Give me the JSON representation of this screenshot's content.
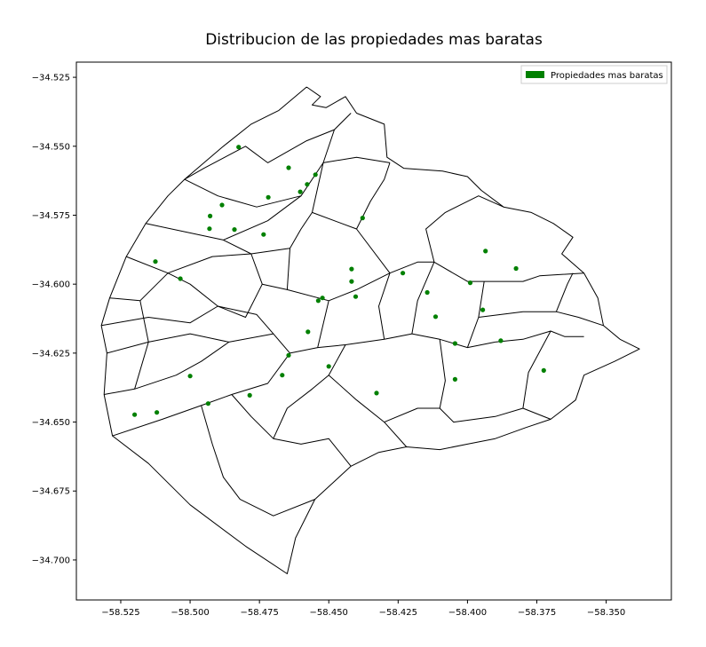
{
  "chart_data": {
    "type": "scatter",
    "title": "Distribucion de las propiedades mas baratas",
    "xlabel": "",
    "ylabel": "",
    "xlim": [
      -58.541,
      -58.3265
    ],
    "ylim": [
      -34.7145,
      -34.5195
    ],
    "x_ticks": [
      -58.525,
      -58.5,
      -58.475,
      -58.45,
      -58.425,
      -58.4,
      -58.375,
      -58.35
    ],
    "x_tick_labels": [
      "−58.525",
      "−58.500",
      "−58.475",
      "−58.450",
      "−58.425",
      "−58.400",
      "−58.375",
      "−58.350"
    ],
    "y_ticks": [
      -34.525,
      -34.55,
      -34.575,
      -34.6,
      -34.625,
      -34.65,
      -34.675,
      -34.7
    ],
    "y_tick_labels": [
      "−34.525",
      "−34.550",
      "−34.575",
      "−34.600",
      "−34.625",
      "−34.650",
      "−34.675",
      "−34.700"
    ],
    "grid": false,
    "legend_position": "top-right",
    "series": [
      {
        "name": "Propiedades mas baratas",
        "color": "#008000",
        "points": [
          {
            "x": -58.4825,
            "y": -34.5503
          },
          {
            "x": -58.4645,
            "y": -34.5578
          },
          {
            "x": -58.4548,
            "y": -34.5603
          },
          {
            "x": -58.4578,
            "y": -34.5638
          },
          {
            "x": -58.4603,
            "y": -34.5665
          },
          {
            "x": -58.4718,
            "y": -34.5685
          },
          {
            "x": -58.4885,
            "y": -34.5713
          },
          {
            "x": -58.4928,
            "y": -34.5753
          },
          {
            "x": -58.4378,
            "y": -34.576
          },
          {
            "x": -58.493,
            "y": -34.5799
          },
          {
            "x": -58.484,
            "y": -34.5802
          },
          {
            "x": -58.4735,
            "y": -34.582
          },
          {
            "x": -58.3935,
            "y": -34.588
          },
          {
            "x": -58.5125,
            "y": -34.5918
          },
          {
            "x": -58.3825,
            "y": -34.5943
          },
          {
            "x": -58.4418,
            "y": -34.5945
          },
          {
            "x": -58.4233,
            "y": -34.596
          },
          {
            "x": -58.5035,
            "y": -34.598
          },
          {
            "x": -58.4418,
            "y": -34.599
          },
          {
            "x": -58.399,
            "y": -34.5995
          },
          {
            "x": -58.4145,
            "y": -34.603
          },
          {
            "x": -58.4403,
            "y": -34.6045
          },
          {
            "x": -58.4523,
            "y": -34.605
          },
          {
            "x": -58.4538,
            "y": -34.606
          },
          {
            "x": -58.3945,
            "y": -34.6093
          },
          {
            "x": -58.4115,
            "y": -34.6118
          },
          {
            "x": -58.4575,
            "y": -34.6173
          },
          {
            "x": -58.388,
            "y": -34.6205
          },
          {
            "x": -58.4045,
            "y": -34.6215
          },
          {
            "x": -58.4645,
            "y": -34.6258
          },
          {
            "x": -58.45,
            "y": -34.6298
          },
          {
            "x": -58.3725,
            "y": -34.6313
          },
          {
            "x": -58.4668,
            "y": -34.633
          },
          {
            "x": -58.5,
            "y": -34.6333
          },
          {
            "x": -58.4045,
            "y": -34.6345
          },
          {
            "x": -58.4328,
            "y": -34.6395
          },
          {
            "x": -58.4785,
            "y": -34.6403
          },
          {
            "x": -58.4935,
            "y": -34.6433
          },
          {
            "x": -58.512,
            "y": -34.6465
          },
          {
            "x": -58.52,
            "y": -34.6473
          }
        ]
      }
    ],
    "boundaries": [
      [
        [
          -58.458,
          -34.5285
        ],
        [
          -58.453,
          -34.532
        ],
        [
          -58.456,
          -34.535
        ],
        [
          -58.451,
          -34.536
        ],
        [
          -58.444,
          -34.532
        ],
        [
          -58.44,
          -34.538
        ],
        [
          -58.43,
          -34.542
        ],
        [
          -58.429,
          -34.554
        ],
        [
          -58.423,
          -34.558
        ],
        [
          -58.409,
          -34.559
        ],
        [
          -58.4,
          -34.561
        ],
        [
          -58.395,
          -34.566
        ],
        [
          -58.387,
          -34.572
        ],
        [
          -58.377,
          -34.574
        ],
        [
          -58.369,
          -34.578
        ],
        [
          -58.362,
          -34.583
        ],
        [
          -58.366,
          -34.589
        ],
        [
          -58.358,
          -34.596
        ],
        [
          -58.353,
          -34.605
        ],
        [
          -58.351,
          -34.615
        ],
        [
          -58.345,
          -34.62
        ],
        [
          -58.338,
          -34.6235
        ],
        [
          -58.347,
          -34.628
        ],
        [
          -58.358,
          -34.633
        ],
        [
          -58.361,
          -34.642
        ],
        [
          -58.37,
          -34.649
        ],
        [
          -58.379,
          -34.652
        ],
        [
          -58.39,
          -34.656
        ],
        [
          -58.4,
          -34.658
        ],
        [
          -58.41,
          -34.66
        ],
        [
          -58.422,
          -34.659
        ],
        [
          -58.432,
          -34.661
        ],
        [
          -58.442,
          -34.666
        ],
        [
          -58.455,
          -34.678
        ],
        [
          -58.462,
          -34.692
        ],
        [
          -58.465,
          -34.705
        ],
        [
          -58.48,
          -34.695
        ],
        [
          -58.5,
          -34.68
        ],
        [
          -58.515,
          -34.665
        ],
        [
          -58.528,
          -34.655
        ],
        [
          -58.531,
          -34.64
        ],
        [
          -58.53,
          -34.625
        ],
        [
          -58.532,
          -34.615
        ],
        [
          -58.529,
          -34.605
        ],
        [
          -58.523,
          -34.59
        ],
        [
          -58.516,
          -34.578
        ],
        [
          -58.508,
          -34.568
        ],
        [
          -58.502,
          -34.562
        ],
        [
          -58.495,
          -34.556
        ],
        [
          -58.488,
          -34.55
        ],
        [
          -58.478,
          -34.542
        ],
        [
          -58.468,
          -34.537
        ],
        [
          -58.458,
          -34.5285
        ]
      ],
      [
        [
          -58.502,
          -34.562
        ],
        [
          -58.495,
          -34.558
        ],
        [
          -58.48,
          -34.55
        ],
        [
          -58.472,
          -34.556
        ],
        [
          -58.458,
          -34.548
        ],
        [
          -58.448,
          -34.544
        ],
        [
          -58.442,
          -34.538
        ]
      ],
      [
        [
          -58.448,
          -34.544
        ],
        [
          -58.452,
          -34.556
        ],
        [
          -58.46,
          -34.568
        ],
        [
          -58.476,
          -34.572
        ],
        [
          -58.49,
          -34.568
        ],
        [
          -58.502,
          -34.562
        ]
      ],
      [
        [
          -58.516,
          -34.578
        ],
        [
          -58.488,
          -34.584
        ],
        [
          -58.472,
          -34.577
        ],
        [
          -58.46,
          -34.568
        ]
      ],
      [
        [
          -58.488,
          -34.584
        ],
        [
          -58.478,
          -34.589
        ],
        [
          -58.464,
          -34.587
        ],
        [
          -58.46,
          -34.58
        ],
        [
          -58.456,
          -34.574
        ],
        [
          -58.452,
          -34.556
        ],
        [
          -58.44,
          -34.554
        ],
        [
          -58.428,
          -34.556
        ]
      ],
      [
        [
          -58.508,
          -34.596
        ],
        [
          -58.492,
          -34.59
        ],
        [
          -58.478,
          -34.589
        ],
        [
          -58.474,
          -34.6
        ],
        [
          -58.465,
          -34.602
        ],
        [
          -58.464,
          -34.587
        ]
      ],
      [
        [
          -58.523,
          -34.59
        ],
        [
          -58.508,
          -34.596
        ],
        [
          -58.5,
          -34.6
        ],
        [
          -58.49,
          -34.608
        ],
        [
          -58.48,
          -34.612
        ],
        [
          -58.474,
          -34.6
        ]
      ],
      [
        [
          -58.465,
          -34.602
        ],
        [
          -58.45,
          -34.606
        ],
        [
          -58.44,
          -34.602
        ],
        [
          -58.428,
          -34.596
        ],
        [
          -58.418,
          -34.592
        ],
        [
          -58.412,
          -34.592
        ],
        [
          -58.4,
          -34.599
        ],
        [
          -58.394,
          -34.599
        ],
        [
          -58.38,
          -34.599
        ],
        [
          -58.374,
          -34.597
        ],
        [
          -58.358,
          -34.596
        ]
      ],
      [
        [
          -58.456,
          -34.574
        ],
        [
          -58.44,
          -34.58
        ],
        [
          -58.428,
          -34.596
        ]
      ],
      [
        [
          -58.44,
          -34.58
        ],
        [
          -58.435,
          -34.57
        ],
        [
          -58.43,
          -34.562
        ],
        [
          -58.428,
          -34.556
        ]
      ],
      [
        [
          -58.412,
          -34.592
        ],
        [
          -58.415,
          -34.58
        ],
        [
          -58.408,
          -34.574
        ],
        [
          -58.396,
          -34.568
        ],
        [
          -58.387,
          -34.572
        ]
      ],
      [
        [
          -58.529,
          -34.605
        ],
        [
          -58.518,
          -34.606
        ],
        [
          -58.508,
          -34.596
        ]
      ],
      [
        [
          -58.49,
          -34.608
        ],
        [
          -58.476,
          -34.611
        ],
        [
          -58.47,
          -34.618
        ],
        [
          -58.464,
          -34.625
        ],
        [
          -58.454,
          -34.623
        ],
        [
          -58.45,
          -34.606
        ]
      ],
      [
        [
          -58.532,
          -34.615
        ],
        [
          -58.515,
          -34.612
        ],
        [
          -58.5,
          -34.614
        ],
        [
          -58.49,
          -34.608
        ]
      ],
      [
        [
          -58.53,
          -34.625
        ],
        [
          -58.515,
          -34.621
        ],
        [
          -58.5,
          -34.618
        ],
        [
          -58.486,
          -34.621
        ],
        [
          -58.47,
          -34.618
        ]
      ],
      [
        [
          -58.531,
          -34.64
        ],
        [
          -58.52,
          -34.638
        ],
        [
          -58.505,
          -34.633
        ],
        [
          -58.496,
          -34.628
        ],
        [
          -58.486,
          -34.621
        ]
      ],
      [
        [
          -58.528,
          -34.655
        ],
        [
          -58.51,
          -34.649
        ],
        [
          -58.496,
          -34.644
        ],
        [
          -58.485,
          -34.64
        ],
        [
          -58.472,
          -34.636
        ],
        [
          -58.464,
          -34.625
        ]
      ],
      [
        [
          -58.496,
          -34.644
        ],
        [
          -58.492,
          -34.658
        ],
        [
          -58.488,
          -34.67
        ],
        [
          -58.482,
          -34.678
        ],
        [
          -58.47,
          -34.684
        ],
        [
          -58.455,
          -34.678
        ]
      ],
      [
        [
          -58.485,
          -34.64
        ],
        [
          -58.478,
          -34.648
        ],
        [
          -58.47,
          -34.656
        ],
        [
          -58.46,
          -34.658
        ],
        [
          -58.45,
          -34.656
        ],
        [
          -58.442,
          -34.666
        ]
      ],
      [
        [
          -58.47,
          -34.656
        ],
        [
          -58.465,
          -34.645
        ],
        [
          -58.456,
          -34.638
        ],
        [
          -58.45,
          -34.633
        ],
        [
          -58.444,
          -34.622
        ],
        [
          -58.454,
          -34.623
        ]
      ],
      [
        [
          -58.45,
          -34.633
        ],
        [
          -58.44,
          -34.642
        ],
        [
          -58.43,
          -34.65
        ],
        [
          -58.422,
          -34.659
        ]
      ],
      [
        [
          -58.444,
          -34.622
        ],
        [
          -58.43,
          -34.62
        ],
        [
          -58.42,
          -34.618
        ],
        [
          -58.41,
          -34.62
        ],
        [
          -58.4,
          -34.623
        ],
        [
          -58.39,
          -34.621
        ]
      ],
      [
        [
          -58.43,
          -34.62
        ],
        [
          -58.432,
          -34.608
        ],
        [
          -58.428,
          -34.596
        ]
      ],
      [
        [
          -58.42,
          -34.618
        ],
        [
          -58.418,
          -34.606
        ],
        [
          -58.412,
          -34.592
        ]
      ],
      [
        [
          -58.43,
          -34.65
        ],
        [
          -58.418,
          -34.645
        ],
        [
          -58.41,
          -34.645
        ],
        [
          -58.408,
          -34.635
        ],
        [
          -58.41,
          -34.62
        ]
      ],
      [
        [
          -58.41,
          -34.645
        ],
        [
          -58.405,
          -34.65
        ],
        [
          -58.39,
          -34.648
        ],
        [
          -58.38,
          -34.645
        ],
        [
          -58.37,
          -34.649
        ]
      ],
      [
        [
          -58.4,
          -34.623
        ],
        [
          -58.396,
          -34.612
        ],
        [
          -58.394,
          -34.599
        ]
      ],
      [
        [
          -58.396,
          -34.612
        ],
        [
          -58.38,
          -34.61
        ],
        [
          -58.368,
          -34.61
        ],
        [
          -58.36,
          -34.612
        ],
        [
          -58.351,
          -34.615
        ]
      ],
      [
        [
          -58.39,
          -34.621
        ],
        [
          -58.38,
          -34.62
        ],
        [
          -58.37,
          -34.617
        ],
        [
          -58.365,
          -34.619
        ],
        [
          -58.358,
          -34.619
        ]
      ],
      [
        [
          -58.38,
          -34.645
        ],
        [
          -58.378,
          -34.632
        ],
        [
          -58.37,
          -34.617
        ]
      ],
      [
        [
          -58.368,
          -34.61
        ],
        [
          -58.364,
          -34.6
        ],
        [
          -58.362,
          -34.596
        ]
      ],
      [
        [
          -58.52,
          -34.638
        ],
        [
          -58.515,
          -34.621
        ],
        [
          -58.518,
          -34.606
        ]
      ]
    ]
  }
}
